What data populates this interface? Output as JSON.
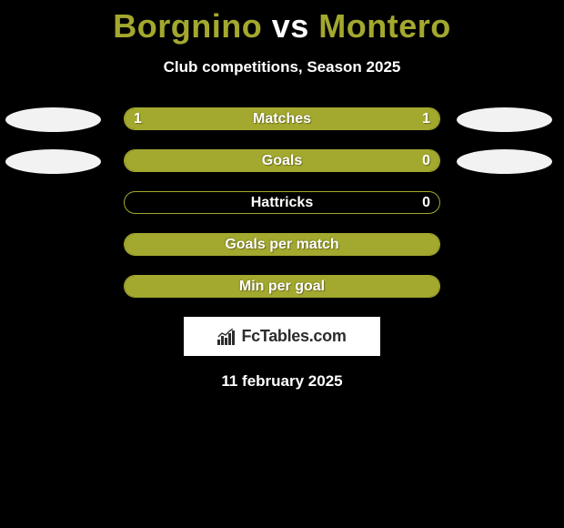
{
  "background_color": "#000000",
  "accent_color": "#a3a82e",
  "text_color": "#ffffff",
  "title": {
    "player1": "Borgnino",
    "vs": "vs",
    "player2": "Montero",
    "font_size": 36,
    "player_color": "#a3a82e",
    "vs_color": "#ffffff"
  },
  "subtitle": {
    "text": "Club competitions, Season 2025",
    "font_size": 17
  },
  "bar_style": {
    "outer_width": 348,
    "outer_height": 25,
    "border_radius": 13,
    "border_color": "#a3a82e",
    "fill_color": "#a3a82e",
    "label_color": "#ffffff",
    "label_font_size": 16,
    "value_font_size": 16
  },
  "photo_style": {
    "width": 105,
    "height": 27,
    "background": "#f2f2f2"
  },
  "stats": [
    {
      "label": "Matches",
      "left_value": "1",
      "right_value": "1",
      "left_fill_pct": 50,
      "right_fill_pct": 50,
      "show_left_photo": true,
      "show_right_photo": true
    },
    {
      "label": "Goals",
      "left_value": "",
      "right_value": "0",
      "left_fill_pct": 100,
      "right_fill_pct": 0,
      "show_left_photo": true,
      "show_right_photo": true
    },
    {
      "label": "Hattricks",
      "left_value": "",
      "right_value": "0",
      "left_fill_pct": 0,
      "right_fill_pct": 0,
      "show_left_photo": false,
      "show_right_photo": false
    },
    {
      "label": "Goals per match",
      "left_value": "",
      "right_value": "",
      "left_fill_pct": 100,
      "right_fill_pct": 0,
      "show_left_photo": false,
      "show_right_photo": false
    },
    {
      "label": "Min per goal",
      "left_value": "",
      "right_value": "",
      "left_fill_pct": 100,
      "right_fill_pct": 0,
      "show_left_photo": false,
      "show_right_photo": false
    }
  ],
  "brand": {
    "text": "FcTables.com",
    "box_background": "#ffffff",
    "text_color": "#2d2d2d",
    "font_size": 18
  },
  "date": {
    "text": "11 february 2025",
    "font_size": 17
  }
}
